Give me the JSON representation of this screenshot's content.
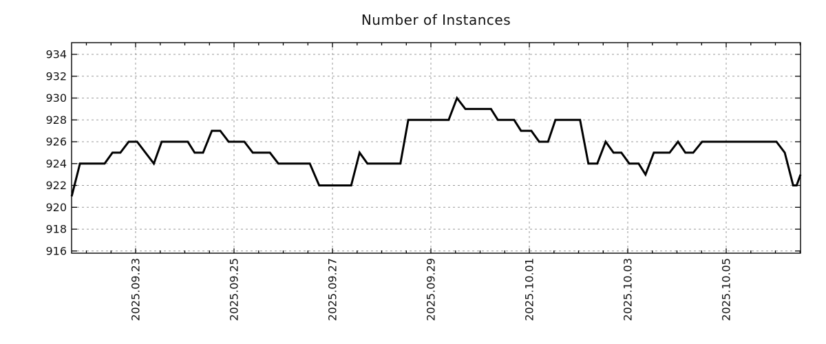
{
  "title": "Number of Instances",
  "colors": {
    "line": "#000000",
    "grid": "#999999",
    "frame": "#000000",
    "text": "#111111",
    "background": "#ffffff"
  },
  "chart_data": {
    "type": "line",
    "title": "Number of Instances",
    "xlabel": "",
    "ylabel": "",
    "legend": "none",
    "grid": true,
    "x_unit": "days relative to 2025-09-23 00:00",
    "x_range": [
      -1.301,
      13.51
    ],
    "y_range": [
      915.8,
      935.07
    ],
    "y_ticks": [
      916,
      918,
      920,
      922,
      924,
      926,
      928,
      930,
      932,
      934
    ],
    "x_major_ticks": [
      {
        "pos": 0,
        "label": "2025.09.23"
      },
      {
        "pos": 2,
        "label": "2025.09.25"
      },
      {
        "pos": 4,
        "label": "2025.09.27"
      },
      {
        "pos": 6,
        "label": "2025.09.29"
      },
      {
        "pos": 8,
        "label": "2025.10.01"
      },
      {
        "pos": 10,
        "label": "2025.10.03"
      },
      {
        "pos": 12,
        "label": "2025.10.05"
      }
    ],
    "x_minor_tick_start": -1.0,
    "x_minor_tick_step": 0.5,
    "x_minor_tick_end": 13.5,
    "series": [
      {
        "name": "Number of Instances",
        "color": "#000000",
        "points": [
          [
            -1.3,
            921
          ],
          [
            -1.13,
            924
          ],
          [
            -0.63,
            924
          ],
          [
            -0.47,
            925
          ],
          [
            -0.31,
            925
          ],
          [
            -0.14,
            926
          ],
          [
            0.03,
            926
          ],
          [
            0.37,
            924
          ],
          [
            0.53,
            926
          ],
          [
            1.06,
            926
          ],
          [
            1.2,
            925
          ],
          [
            1.37,
            925
          ],
          [
            1.55,
            927
          ],
          [
            1.72,
            927
          ],
          [
            1.89,
            926
          ],
          [
            2.21,
            926
          ],
          [
            2.38,
            925
          ],
          [
            2.73,
            925
          ],
          [
            2.9,
            924
          ],
          [
            3.54,
            924
          ],
          [
            3.73,
            922
          ],
          [
            4.38,
            922
          ],
          [
            4.55,
            925
          ],
          [
            4.71,
            924
          ],
          [
            5.38,
            924
          ],
          [
            5.54,
            928
          ],
          [
            6.36,
            928
          ],
          [
            6.53,
            930
          ],
          [
            6.7,
            929
          ],
          [
            7.22,
            929
          ],
          [
            7.36,
            928
          ],
          [
            7.69,
            928
          ],
          [
            7.83,
            927
          ],
          [
            8.04,
            927
          ],
          [
            8.2,
            926
          ],
          [
            8.38,
            926
          ],
          [
            8.53,
            928
          ],
          [
            9.03,
            928
          ],
          [
            9.2,
            924
          ],
          [
            9.38,
            924
          ],
          [
            9.55,
            926
          ],
          [
            9.71,
            925
          ],
          [
            9.87,
            925
          ],
          [
            10.03,
            924
          ],
          [
            10.22,
            924
          ],
          [
            10.36,
            923
          ],
          [
            10.53,
            925
          ],
          [
            10.85,
            925
          ],
          [
            11.02,
            926
          ],
          [
            11.17,
            925
          ],
          [
            11.33,
            925
          ],
          [
            11.51,
            926
          ],
          [
            13.02,
            926
          ],
          [
            13.19,
            925
          ],
          [
            13.36,
            922
          ],
          [
            13.43,
            922
          ],
          [
            13.51,
            923
          ]
        ]
      }
    ]
  }
}
